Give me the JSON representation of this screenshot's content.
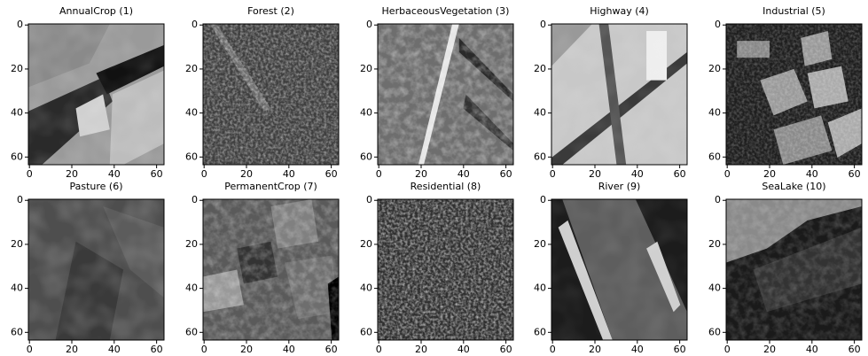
{
  "chart_data": [
    {
      "type": "image",
      "title": "AnnualCrop (1)",
      "xlim": [
        -0.5,
        63.5
      ],
      "ylim": [
        63.5,
        -0.5
      ],
      "xticks": [
        0,
        20,
        40,
        60
      ],
      "yticks": [
        0,
        20,
        40,
        60
      ]
    },
    {
      "type": "image",
      "title": "Forest (2)",
      "xlim": [
        -0.5,
        63.5
      ],
      "ylim": [
        63.5,
        -0.5
      ],
      "xticks": [
        0,
        20,
        40,
        60
      ],
      "yticks": [
        0,
        20,
        40,
        60
      ]
    },
    {
      "type": "image",
      "title": "HerbaceousVegetation (3)",
      "xlim": [
        -0.5,
        63.5
      ],
      "ylim": [
        63.5,
        -0.5
      ],
      "xticks": [
        0,
        20,
        40,
        60
      ],
      "yticks": [
        0,
        20,
        40,
        60
      ]
    },
    {
      "type": "image",
      "title": "Highway (4)",
      "xlim": [
        -0.5,
        63.5
      ],
      "ylim": [
        63.5,
        -0.5
      ],
      "xticks": [
        0,
        20,
        40,
        60
      ],
      "yticks": [
        0,
        20,
        40,
        60
      ]
    },
    {
      "type": "image",
      "title": "Industrial (5)",
      "xlim": [
        -0.5,
        63.5
      ],
      "ylim": [
        63.5,
        -0.5
      ],
      "xticks": [
        0,
        20,
        40,
        60
      ],
      "yticks": [
        0,
        20,
        40,
        60
      ]
    },
    {
      "type": "image",
      "title": "Pasture (6)",
      "xlim": [
        -0.5,
        63.5
      ],
      "ylim": [
        63.5,
        -0.5
      ],
      "xticks": [
        0,
        20,
        40,
        60
      ],
      "yticks": [
        0,
        20,
        40,
        60
      ]
    },
    {
      "type": "image",
      "title": "PermanentCrop (7)",
      "xlim": [
        -0.5,
        63.5
      ],
      "ylim": [
        63.5,
        -0.5
      ],
      "xticks": [
        0,
        20,
        40,
        60
      ],
      "yticks": [
        0,
        20,
        40,
        60
      ]
    },
    {
      "type": "image",
      "title": "Residential (8)",
      "xlim": [
        -0.5,
        63.5
      ],
      "ylim": [
        63.5,
        -0.5
      ],
      "xticks": [
        0,
        20,
        40,
        60
      ],
      "yticks": [
        0,
        20,
        40,
        60
      ]
    },
    {
      "type": "image",
      "title": "River (9)",
      "xlim": [
        -0.5,
        63.5
      ],
      "ylim": [
        63.5,
        -0.5
      ],
      "xticks": [
        0,
        20,
        40,
        60
      ],
      "yticks": [
        0,
        20,
        40,
        60
      ]
    },
    {
      "type": "image",
      "title": "SeaLake (10)",
      "xlim": [
        -0.5,
        63.5
      ],
      "ylim": [
        63.5,
        -0.5
      ],
      "xticks": [
        0,
        20,
        40,
        60
      ],
      "yticks": [
        0,
        20,
        40,
        60
      ]
    }
  ]
}
